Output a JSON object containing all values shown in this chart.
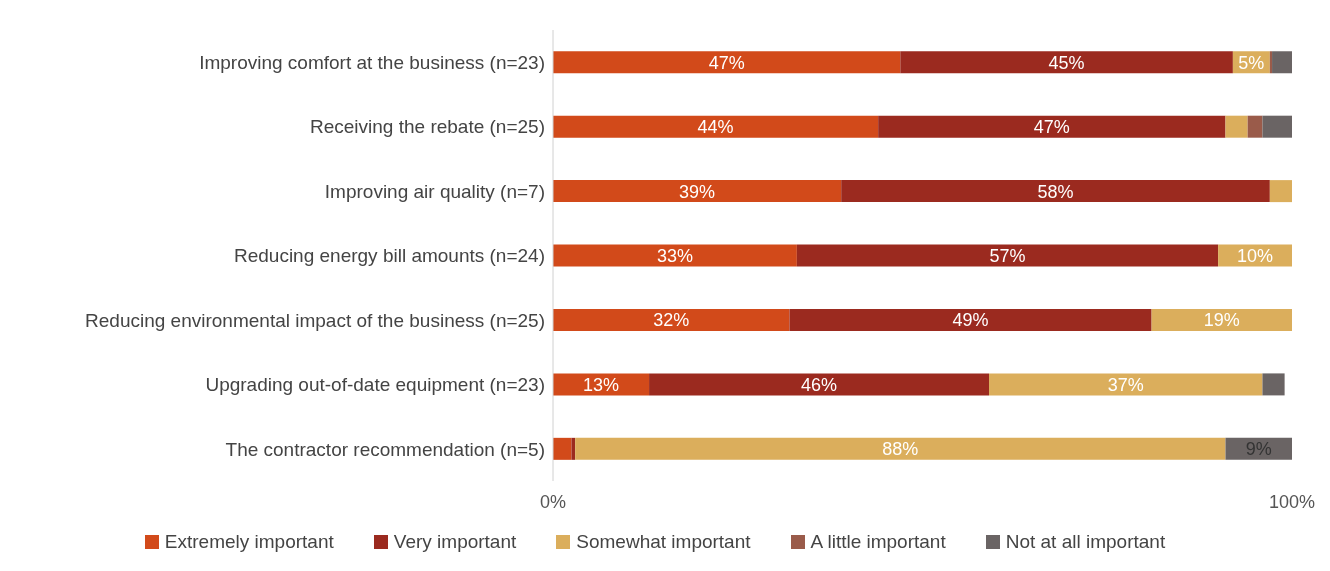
{
  "chart_data": {
    "type": "bar",
    "orientation": "horizontal",
    "stacked": true,
    "categories": [
      "Improving comfort at the business (n=23)",
      "Receiving the rebate (n=25)",
      "Improving air quality (n=7)",
      "Reducing energy bill amounts (n=24)",
      "Reducing environmental impact of the business (n=25)",
      "Upgrading out-of-date equipment (n=23)",
      "The contractor recommendation (n=5)"
    ],
    "series": [
      {
        "name": "Extremely important",
        "color": "#d24a1a",
        "values": [
          47,
          44,
          39,
          33,
          32,
          13,
          2.5
        ],
        "value_labels": [
          "47%",
          "44%",
          "39%",
          "33%",
          "32%",
          "13%",
          null
        ]
      },
      {
        "name": "Very important",
        "color": "#9b2a1f",
        "values": [
          45,
          47,
          58,
          57,
          49,
          46,
          0.5
        ],
        "value_labels": [
          "45%",
          "47%",
          "58%",
          "57%",
          "49%",
          "46%",
          null
        ]
      },
      {
        "name": "Somewhat important",
        "color": "#dbae5c",
        "values": [
          5,
          3,
          3,
          10,
          19,
          37,
          88
        ],
        "value_labels": [
          "5%",
          null,
          null,
          "10%",
          "19%",
          "37%",
          "88%"
        ]
      },
      {
        "name": "A little important",
        "color": "#9a5b4a",
        "values": [
          0.3,
          2,
          0.3,
          0,
          0.3,
          0,
          0
        ],
        "value_labels": [
          null,
          null,
          null,
          null,
          null,
          null,
          null
        ]
      },
      {
        "name": "Not at all important",
        "color": "#6a6464",
        "values": [
          3,
          4,
          0,
          0,
          0,
          3,
          9
        ],
        "value_labels": [
          null,
          null,
          null,
          null,
          null,
          null,
          "9%"
        ]
      }
    ],
    "xlim": [
      0,
      100
    ],
    "xticks": [
      {
        "value": 0,
        "label": "0%"
      },
      {
        "value": 100,
        "label": "100%"
      }
    ],
    "grid": false,
    "legend": "bottom"
  }
}
